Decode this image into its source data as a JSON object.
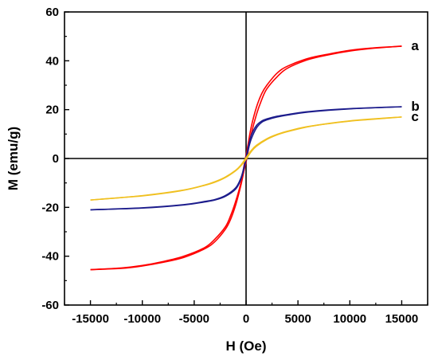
{
  "chart_data": {
    "type": "line",
    "xlabel": "H (Oe)",
    "ylabel": "M (emu/g)",
    "xlim": [
      -17500,
      17500
    ],
    "ylim": [
      -60,
      60
    ],
    "x_ticks": [
      -15000,
      -10000,
      -5000,
      0,
      5000,
      10000,
      15000
    ],
    "x_tick_labels": [
      "-15000",
      "-10000",
      "-5000",
      "0",
      "5000",
      "10000",
      "15000"
    ],
    "y_ticks": [
      -60,
      -40,
      -20,
      0,
      20,
      40,
      60
    ],
    "y_tick_labels": [
      "-60",
      "-40",
      "-20",
      "0",
      "20",
      "40",
      "60"
    ],
    "grid": false,
    "legend": "labels at right end of curves",
    "series": [
      {
        "name": "a",
        "color": "#ff0000",
        "ascending": [
          [
            -15000,
            -45.5
          ],
          [
            -12000,
            -45
          ],
          [
            -10000,
            -44
          ],
          [
            -8000,
            -42.5
          ],
          [
            -6000,
            -40.5
          ],
          [
            -4000,
            -37
          ],
          [
            -3000,
            -34
          ],
          [
            -2000,
            -29
          ],
          [
            -1500,
            -25
          ],
          [
            -1000,
            -19
          ],
          [
            -500,
            -11
          ],
          [
            -200,
            -5
          ],
          [
            0,
            -1.5
          ],
          [
            200,
            3
          ],
          [
            500,
            10
          ],
          [
            1000,
            18
          ],
          [
            1500,
            24
          ],
          [
            2000,
            28.5
          ],
          [
            3000,
            33.5
          ],
          [
            4000,
            37
          ],
          [
            6000,
            40.5
          ],
          [
            8000,
            42.5
          ],
          [
            10000,
            44
          ],
          [
            12000,
            45
          ],
          [
            15000,
            46
          ]
        ],
        "descending": [
          [
            15000,
            46
          ],
          [
            12000,
            45.2
          ],
          [
            10000,
            44.3
          ],
          [
            8000,
            42.8
          ],
          [
            6000,
            41
          ],
          [
            4000,
            37.8
          ],
          [
            3000,
            35
          ],
          [
            2000,
            30
          ],
          [
            1500,
            26.5
          ],
          [
            1000,
            21
          ],
          [
            500,
            13
          ],
          [
            200,
            6
          ],
          [
            0,
            1.5
          ],
          [
            -200,
            -3
          ],
          [
            -500,
            -10
          ],
          [
            -1000,
            -17.5
          ],
          [
            -1500,
            -23.5
          ],
          [
            -2000,
            -28
          ],
          [
            -3000,
            -33
          ],
          [
            -4000,
            -36.5
          ],
          [
            -6000,
            -40
          ],
          [
            -8000,
            -42.2
          ],
          [
            -10000,
            -43.8
          ],
          [
            -12000,
            -44.8
          ],
          [
            -15000,
            -45.5
          ]
        ]
      },
      {
        "name": "b",
        "color": "#1c1c8c",
        "ascending": [
          [
            -15000,
            -21
          ],
          [
            -10000,
            -20.3
          ],
          [
            -6000,
            -19
          ],
          [
            -4000,
            -17.8
          ],
          [
            -3000,
            -17
          ],
          [
            -2000,
            -15.5
          ],
          [
            -1000,
            -12.5
          ],
          [
            -500,
            -8.5
          ],
          [
            -200,
            -4
          ],
          [
            0,
            -0.5
          ],
          [
            200,
            3.5
          ],
          [
            500,
            8
          ],
          [
            1000,
            12.5
          ],
          [
            1500,
            14.8
          ],
          [
            2000,
            15.8
          ],
          [
            3000,
            17
          ],
          [
            4000,
            17.8
          ],
          [
            6000,
            19
          ],
          [
            10000,
            20.3
          ],
          [
            15000,
            21.2
          ]
        ],
        "descending": [
          [
            15000,
            21.2
          ],
          [
            10000,
            20.4
          ],
          [
            6000,
            19.2
          ],
          [
            4000,
            18
          ],
          [
            3000,
            17.3
          ],
          [
            2000,
            16.2
          ],
          [
            1500,
            15.3
          ],
          [
            1000,
            13.5
          ],
          [
            500,
            9.5
          ],
          [
            200,
            4.5
          ],
          [
            0,
            0.5
          ],
          [
            -200,
            -3.5
          ],
          [
            -500,
            -8
          ],
          [
            -1000,
            -12
          ],
          [
            -2000,
            -15.2
          ],
          [
            -3000,
            -16.8
          ],
          [
            -4000,
            -17.6
          ],
          [
            -6000,
            -18.9
          ],
          [
            -10000,
            -20.2
          ],
          [
            -15000,
            -21
          ]
        ]
      },
      {
        "name": "c",
        "color": "#f0c020",
        "ascending": [
          [
            -15000,
            -17
          ],
          [
            -12000,
            -16
          ],
          [
            -10000,
            -15.3
          ],
          [
            -8000,
            -14.3
          ],
          [
            -6000,
            -13
          ],
          [
            -4000,
            -11
          ],
          [
            -3000,
            -9.7
          ],
          [
            -2000,
            -7.8
          ],
          [
            -1000,
            -5
          ],
          [
            -500,
            -3
          ],
          [
            0,
            -0.3
          ],
          [
            500,
            2.8
          ],
          [
            1000,
            5
          ],
          [
            2000,
            7.8
          ],
          [
            3000,
            9.7
          ],
          [
            4000,
            11
          ],
          [
            6000,
            13
          ],
          [
            8000,
            14.3
          ],
          [
            10000,
            15.3
          ],
          [
            12000,
            16
          ],
          [
            15000,
            17
          ]
        ],
        "descending": [
          [
            15000,
            17
          ],
          [
            10000,
            15.4
          ],
          [
            6000,
            13.1
          ],
          [
            4000,
            11.2
          ],
          [
            3000,
            9.9
          ],
          [
            2000,
            8.1
          ],
          [
            1000,
            5.4
          ],
          [
            500,
            3.3
          ],
          [
            0,
            0.3
          ],
          [
            -500,
            -2.7
          ],
          [
            -1000,
            -4.8
          ],
          [
            -2000,
            -7.6
          ],
          [
            -3000,
            -9.5
          ],
          [
            -4000,
            -10.9
          ],
          [
            -6000,
            -12.9
          ],
          [
            -10000,
            -15.2
          ],
          [
            -15000,
            -17
          ]
        ]
      }
    ]
  }
}
